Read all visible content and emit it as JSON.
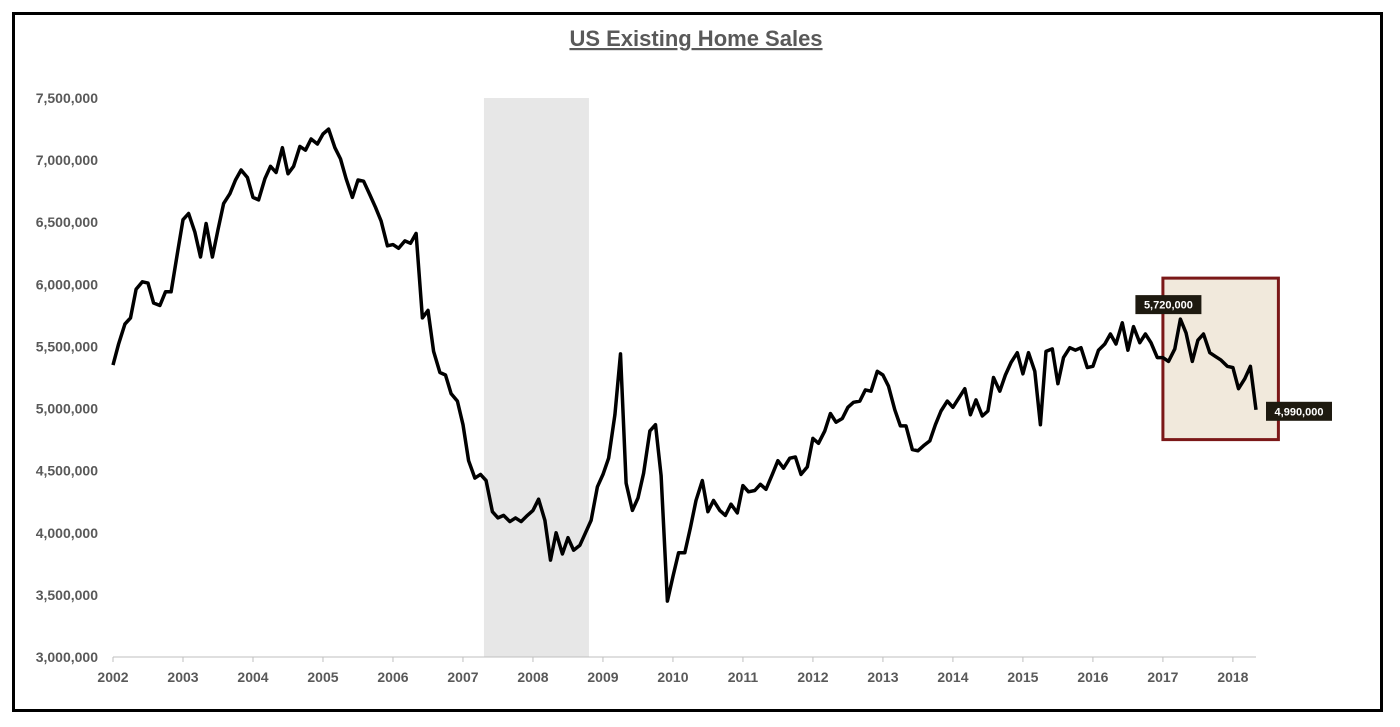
{
  "chart_data": {
    "type": "line",
    "title": "US Existing Home Sales",
    "xlabel": "",
    "ylabel": "",
    "xlim": [
      2002.0,
      2018.33
    ],
    "ylim": [
      3000000,
      7500000
    ],
    "y_ticks": [
      3000000,
      3500000,
      4000000,
      4500000,
      5000000,
      5500000,
      6000000,
      6500000,
      7000000,
      7500000
    ],
    "y_tick_labels": [
      "3,000,000",
      "3,500,000",
      "4,000,000",
      "4,500,000",
      "5,000,000",
      "5,500,000",
      "6,000,000",
      "6,500,000",
      "7,000,000",
      "7,500,000"
    ],
    "x_ticks": [
      2002,
      2003,
      2004,
      2005,
      2006,
      2007,
      2008,
      2009,
      2010,
      2011,
      2012,
      2013,
      2014,
      2015,
      2016,
      2017,
      2018
    ],
    "x_tick_labels": [
      "2002",
      "2003",
      "2004",
      "2005",
      "2006",
      "2007",
      "2008",
      "2009",
      "2010",
      "2011",
      "2012",
      "2013",
      "2014",
      "2015",
      "2016",
      "2017",
      "2018"
    ],
    "grid": false,
    "legend": "none",
    "line_color": "#000000",
    "recession_shading": {
      "x_start": 2007.3,
      "x_end": 2008.8,
      "color": "#e7e7e7"
    },
    "highlight_box": {
      "x_start": 2017.0,
      "x_end": 2018.65,
      "y_min": 4750000,
      "y_max": 6050000,
      "fill": "#f1e9dc",
      "border": "#7b1818"
    },
    "annotations": [
      {
        "label": "5,720,000",
        "x": 2017.25,
        "y": 5720000,
        "anchor": "above"
      },
      {
        "label": "4,990,000",
        "x": 2018.33,
        "y": 4990000,
        "anchor": "right"
      }
    ],
    "series": [
      {
        "x": [
          2002.0,
          2002.08,
          2002.17,
          2002.25,
          2002.33,
          2002.42,
          2002.5,
          2002.58,
          2002.67,
          2002.75,
          2002.83,
          2002.92,
          2003.0,
          2003.08,
          2003.17,
          2003.25,
          2003.33,
          2003.42,
          2003.5,
          2003.58,
          2003.67,
          2003.75,
          2003.83,
          2003.92,
          2004.0,
          2004.08,
          2004.17,
          2004.25,
          2004.33,
          2004.42,
          2004.5,
          2004.58,
          2004.67,
          2004.75,
          2004.83,
          2004.92,
          2005.0,
          2005.08,
          2005.17,
          2005.25,
          2005.33,
          2005.42,
          2005.5,
          2005.58,
          2005.67,
          2005.75,
          2005.83,
          2005.92,
          2006.0,
          2006.08,
          2006.17,
          2006.25,
          2006.33,
          2006.42,
          2006.5,
          2006.58,
          2006.67,
          2006.75,
          2006.83,
          2006.92,
          2007.0,
          2007.08,
          2007.17,
          2007.25,
          2007.33,
          2007.42,
          2007.5,
          2007.58,
          2007.67,
          2007.75,
          2007.83,
          2007.92,
          2008.0,
          2008.08,
          2008.17,
          2008.25,
          2008.33,
          2008.42,
          2008.5,
          2008.58,
          2008.67,
          2008.75,
          2008.83,
          2008.92,
          2009.0,
          2009.08,
          2009.17,
          2009.25,
          2009.33,
          2009.42,
          2009.5,
          2009.58,
          2009.67,
          2009.75,
          2009.83,
          2009.92,
          2010.0,
          2010.08,
          2010.17,
          2010.25,
          2010.33,
          2010.42,
          2010.5,
          2010.58,
          2010.67,
          2010.75,
          2010.83,
          2010.92,
          2011.0,
          2011.08,
          2011.17,
          2011.25,
          2011.33,
          2011.42,
          2011.5,
          2011.58,
          2011.67,
          2011.75,
          2011.83,
          2011.92,
          2012.0,
          2012.08,
          2012.17,
          2012.25,
          2012.33,
          2012.42,
          2012.5,
          2012.58,
          2012.67,
          2012.75,
          2012.83,
          2012.92,
          2013.0,
          2013.08,
          2013.17,
          2013.25,
          2013.33,
          2013.42,
          2013.5,
          2013.58,
          2013.67,
          2013.75,
          2013.83,
          2013.92,
          2014.0,
          2014.08,
          2014.17,
          2014.25,
          2014.33,
          2014.42,
          2014.5,
          2014.58,
          2014.67,
          2014.75,
          2014.83,
          2014.92,
          2015.0,
          2015.08,
          2015.17,
          2015.25,
          2015.33,
          2015.42,
          2015.5,
          2015.58,
          2015.67,
          2015.75,
          2015.83,
          2015.92,
          2016.0,
          2016.08,
          2016.17,
          2016.25,
          2016.33,
          2016.42,
          2016.5,
          2016.58,
          2016.67,
          2016.75,
          2016.83,
          2016.92,
          2017.0,
          2017.08,
          2017.17,
          2017.25,
          2017.33,
          2017.42,
          2017.5,
          2017.58,
          2017.67,
          2017.75,
          2017.83,
          2017.92,
          2018.0,
          2018.08,
          2018.17,
          2018.25,
          2018.33
        ],
        "values": [
          5350000,
          5520000,
          5680000,
          5730000,
          5960000,
          6020000,
          6010000,
          5850000,
          5830000,
          5940000,
          5940000,
          6250000,
          6520000,
          6570000,
          6420000,
          6220000,
          6490000,
          6220000,
          6440000,
          6650000,
          6730000,
          6840000,
          6920000,
          6860000,
          6700000,
          6680000,
          6850000,
          6950000,
          6900000,
          7100000,
          6890000,
          6950000,
          7110000,
          7080000,
          7170000,
          7130000,
          7210000,
          7250000,
          7100000,
          7010000,
          6850000,
          6700000,
          6840000,
          6830000,
          6720000,
          6620000,
          6510000,
          6310000,
          6320000,
          6290000,
          6350000,
          6330000,
          6410000,
          5730000,
          5790000,
          5460000,
          5290000,
          5270000,
          5120000,
          5060000,
          4870000,
          4580000,
          4440000,
          4470000,
          4420000,
          4170000,
          4120000,
          4140000,
          4090000,
          4120000,
          4090000,
          4140000,
          4180000,
          4270000,
          4100000,
          3780000,
          4000000,
          3830000,
          3960000,
          3860000,
          3900000,
          4000000,
          4100000,
          4370000,
          4470000,
          4600000,
          4950000,
          5440000,
          4400000,
          4180000,
          4280000,
          4480000,
          4820000,
          4870000,
          4460000,
          3450000,
          3650000,
          3840000,
          3840000,
          4040000,
          4260000,
          4420000,
          4170000,
          4260000,
          4180000,
          4140000,
          4230000,
          4160000,
          4380000,
          4330000,
          4340000,
          4390000,
          4350000,
          4470000,
          4580000,
          4520000,
          4600000,
          4610000,
          4470000,
          4530000,
          4760000,
          4720000,
          4820000,
          4960000,
          4890000,
          4920000,
          5010000,
          5050000,
          5060000,
          5150000,
          5140000,
          5300000,
          5270000,
          5180000,
          4990000,
          4860000,
          4860000,
          4670000,
          4660000,
          4700000,
          4740000,
          4870000,
          4980000,
          5060000,
          5010000,
          5080000,
          5160000,
          4950000,
          5070000,
          4940000,
          4980000,
          5250000,
          5140000,
          5270000,
          5370000,
          5450000,
          5280000,
          5450000,
          5300000,
          4870000,
          5460000,
          5480000,
          5200000,
          5410000,
          5490000,
          5470000,
          5490000,
          5330000,
          5340000,
          5470000,
          5520000,
          5600000,
          5520000,
          5690000,
          5470000,
          5660000,
          5530000,
          5600000,
          5530000,
          5410000,
          5410000,
          5380000,
          5480000,
          5720000,
          5610000,
          5380000,
          5550000,
          5600000,
          5450000,
          5420000,
          5390000,
          5340000,
          5330000,
          5160000,
          5240000,
          5340000,
          4990000
        ]
      }
    ]
  }
}
